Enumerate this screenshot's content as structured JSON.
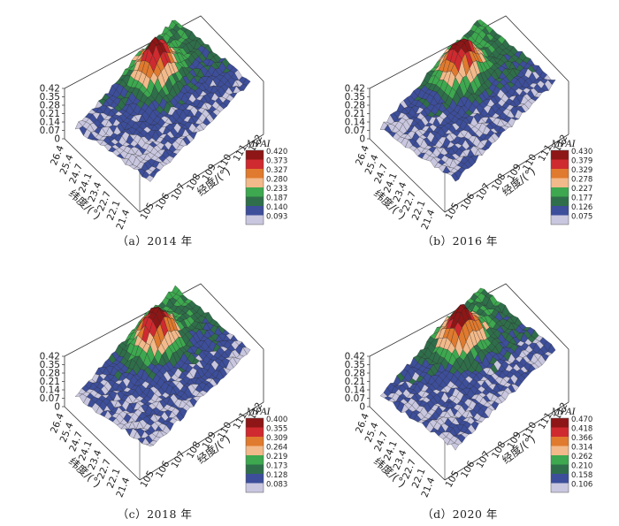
{
  "chart_data": [
    {
      "type": "surface3d",
      "caption": "（a）2014 年",
      "zticks": [
        "0",
        "0.07",
        "0.14",
        "0.21",
        "0.28",
        "0.35",
        "0.42"
      ],
      "lat_ticks": [
        "26.4",
        "25.4",
        "24.7",
        "24.1",
        "23.4",
        "22.7",
        "22.1",
        "21.4"
      ],
      "lon_ticks": [
        "105",
        "106",
        "107",
        "108",
        "109",
        "110",
        "111",
        "112"
      ],
      "xlabel": "经度/(°)",
      "ylabel": "纬度/(°)",
      "legend_title": "MPAI",
      "legend_levels": [
        "0.420",
        "0.373",
        "0.327",
        "0.280",
        "0.233",
        "0.187",
        "0.140",
        "0.093"
      ],
      "legend_colors": [
        "#8e1616",
        "#cf2a2f",
        "#e07a2e",
        "#f2b98a",
        "#3da84f",
        "#2f6e4a",
        "#3d4e9a",
        "#c9c7df"
      ]
    },
    {
      "type": "surface3d",
      "caption": "（b）2016 年",
      "zticks": [
        "0",
        "0.07",
        "0.14",
        "0.21",
        "0.28",
        "0.35",
        "0.42"
      ],
      "lat_ticks": [
        "26.4",
        "25.4",
        "24.7",
        "24.1",
        "23.4",
        "22.7",
        "22.1",
        "21.4"
      ],
      "lon_ticks": [
        "105",
        "106",
        "107",
        "108",
        "109",
        "110",
        "111",
        "112"
      ],
      "xlabel": "经度/(°)",
      "ylabel": "纬度/(°)",
      "legend_title": "MPAI",
      "legend_levels": [
        "0.430",
        "0.379",
        "0.329",
        "0.278",
        "0.227",
        "0.177",
        "0.126",
        "0.075"
      ],
      "legend_colors": [
        "#8e1616",
        "#cf2a2f",
        "#e07a2e",
        "#f2b98a",
        "#3da84f",
        "#2f6e4a",
        "#3d4e9a",
        "#c9c7df"
      ]
    },
    {
      "type": "surface3d",
      "caption": "（c）2018 年",
      "zticks": [
        "0",
        "0.07",
        "0.14",
        "0.21",
        "0.28",
        "0.35",
        "0.42"
      ],
      "lat_ticks": [
        "26.4",
        "25.4",
        "24.7",
        "24.1",
        "23.4",
        "22.7",
        "22.1",
        "21.4"
      ],
      "lon_ticks": [
        "105",
        "106",
        "107",
        "108",
        "109",
        "110",
        "111",
        "112"
      ],
      "xlabel": "经度/(°)",
      "ylabel": "纬度/(°)",
      "legend_title": "MPAI",
      "legend_levels": [
        "0.400",
        "0.355",
        "0.309",
        "0.264",
        "0.219",
        "0.173",
        "0.128",
        "0.083"
      ],
      "legend_colors": [
        "#8e1616",
        "#cf2a2f",
        "#e07a2e",
        "#f2b98a",
        "#3da84f",
        "#2f6e4a",
        "#3d4e9a",
        "#c9c7df"
      ]
    },
    {
      "type": "surface3d",
      "caption": "（d）2020 年",
      "zticks": [
        "0",
        "0.07",
        "0.14",
        "0.21",
        "0.28",
        "0.35",
        "0.42"
      ],
      "lat_ticks": [
        "26.4",
        "25.4",
        "24.7",
        "24.1",
        "23.4",
        "22.7",
        "22.1",
        "21.4"
      ],
      "lon_ticks": [
        "105",
        "106",
        "107",
        "108",
        "109",
        "110",
        "111",
        "112"
      ],
      "xlabel": "经度/(°)",
      "ylabel": "纬度/(°)",
      "legend_title": "MPAI",
      "legend_levels": [
        "0.470",
        "0.418",
        "0.366",
        "0.314",
        "0.262",
        "0.210",
        "0.158",
        "0.106"
      ],
      "legend_colors": [
        "#8e1616",
        "#cf2a2f",
        "#e07a2e",
        "#f2b98a",
        "#3da84f",
        "#2f6e4a",
        "#3d4e9a",
        "#c9c7df"
      ]
    }
  ]
}
